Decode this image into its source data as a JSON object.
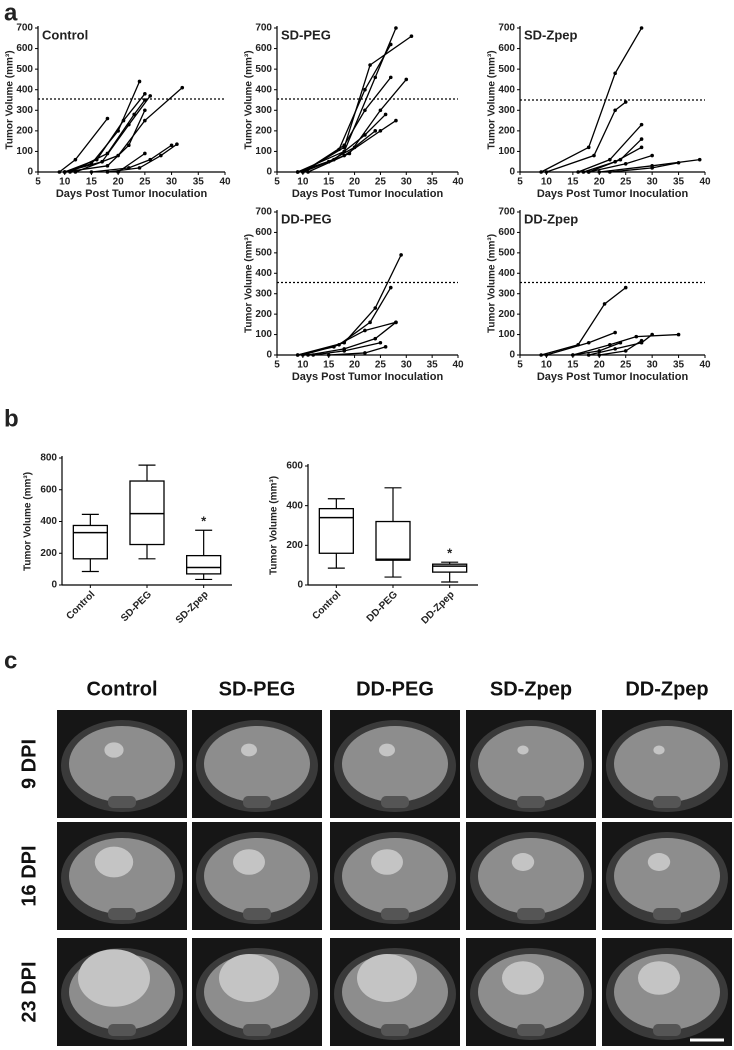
{
  "panel_labels": [
    "a",
    "b",
    "c"
  ],
  "chart_data": [
    {
      "type": "line",
      "title": "Control",
      "xlabel": "Days Post Tumor Inoculation",
      "ylabel": "Tumor Volume (mm³)",
      "xlim": [
        5,
        40
      ],
      "xticks": [
        5,
        10,
        15,
        20,
        25,
        30,
        35,
        40
      ],
      "ylim": [
        0,
        700
      ],
      "yticks": [
        0,
        100,
        200,
        300,
        400,
        500,
        600,
        700
      ],
      "hline": 355,
      "series": [
        {
          "color": "#000000",
          "x": [
            9,
            12,
            18
          ],
          "values": [
            0,
            60,
            260
          ]
        },
        {
          "color": "#000000",
          "x": [
            10,
            15,
            20,
            24
          ],
          "values": [
            0,
            40,
            200,
            440
          ]
        },
        {
          "color": "#000000",
          "x": [
            10,
            16,
            21,
            25
          ],
          "values": [
            0,
            60,
            250,
            380
          ]
        },
        {
          "color": "#000000",
          "x": [
            10,
            17,
            22,
            26
          ],
          "values": [
            0,
            50,
            230,
            370
          ]
        },
        {
          "color": "#000000",
          "x": [
            11,
            18,
            23,
            25
          ],
          "values": [
            0,
            90,
            280,
            350
          ]
        },
        {
          "color": "#000000",
          "x": [
            12,
            20,
            25,
            32
          ],
          "values": [
            0,
            80,
            250,
            410
          ]
        },
        {
          "color": "#000000",
          "x": [
            10,
            18,
            22,
            25
          ],
          "values": [
            0,
            30,
            130,
            300
          ]
        },
        {
          "color": "#000000",
          "x": [
            15,
            22,
            26,
            30
          ],
          "values": [
            0,
            20,
            60,
            130
          ]
        },
        {
          "color": "#000000",
          "x": [
            18,
            24,
            28,
            31
          ],
          "values": [
            0,
            20,
            80,
            135
          ]
        },
        {
          "color": "#000000",
          "x": [
            20,
            25
          ],
          "values": [
            0,
            90
          ]
        }
      ]
    },
    {
      "type": "line",
      "title": "SD-PEG",
      "xlabel": "Days Post Tumor Inoculation",
      "ylabel": "Tumor Volume (mm³)",
      "xlim": [
        5,
        40
      ],
      "xticks": [
        5,
        10,
        15,
        20,
        25,
        30,
        35,
        40
      ],
      "ylim": [
        0,
        700
      ],
      "yticks": [
        0,
        100,
        200,
        300,
        400,
        500,
        600,
        700
      ],
      "hline": 355,
      "series": [
        {
          "color": "#000000",
          "x": [
            9,
            18,
            24,
            28
          ],
          "values": [
            0,
            100,
            460,
            700
          ]
        },
        {
          "color": "#000000",
          "x": [
            10,
            18,
            23,
            31
          ],
          "values": [
            0,
            120,
            520,
            660
          ]
        },
        {
          "color": "#000000",
          "x": [
            10,
            17,
            22,
            27
          ],
          "values": [
            0,
            110,
            400,
            620
          ]
        },
        {
          "color": "#000000",
          "x": [
            11,
            19,
            25,
            30
          ],
          "values": [
            0,
            90,
            300,
            450
          ]
        },
        {
          "color": "#000000",
          "x": [
            10,
            18,
            22,
            27
          ],
          "values": [
            0,
            130,
            300,
            460
          ]
        },
        {
          "color": "#000000",
          "x": [
            10,
            18,
            25,
            28
          ],
          "values": [
            0,
            80,
            200,
            250
          ]
        },
        {
          "color": "#000000",
          "x": [
            9,
            16,
            22,
            26
          ],
          "values": [
            0,
            60,
            180,
            280
          ]
        },
        {
          "color": "#000000",
          "x": [
            9,
            15,
            20,
            24
          ],
          "values": [
            0,
            50,
            120,
            200
          ]
        }
      ]
    },
    {
      "type": "line",
      "title": "SD-Zpep",
      "xlabel": "Days Post Tumor Inoculation",
      "ylabel": "Tumor Volume (mm³)",
      "xlim": [
        5,
        40
      ],
      "xticks": [
        5,
        10,
        15,
        20,
        25,
        30,
        35,
        40
      ],
      "ylim": [
        0,
        700
      ],
      "yticks": [
        0,
        100,
        200,
        300,
        400,
        500,
        600,
        700
      ],
      "hline": 350,
      "series": [
        {
          "color": "#000000",
          "x": [
            9,
            18,
            23,
            28
          ],
          "values": [
            0,
            120,
            480,
            700
          ]
        },
        {
          "color": "#000000",
          "x": [
            10,
            19,
            23,
            25
          ],
          "values": [
            0,
            80,
            300,
            340
          ]
        },
        {
          "color": "#000000",
          "x": [
            16,
            22,
            28
          ],
          "values": [
            0,
            60,
            230
          ]
        },
        {
          "color": "#000000",
          "x": [
            18,
            24,
            28
          ],
          "values": [
            0,
            60,
            160
          ]
        },
        {
          "color": "#000000",
          "x": [
            17,
            23,
            28
          ],
          "values": [
            0,
            50,
            120
          ]
        },
        {
          "color": "#000000",
          "x": [
            18,
            25,
            30
          ],
          "values": [
            0,
            40,
            80
          ]
        },
        {
          "color": "#000000",
          "x": [
            20,
            30,
            39
          ],
          "values": [
            0,
            30,
            60
          ]
        },
        {
          "color": "#000000",
          "x": [
            22,
            30,
            35
          ],
          "values": [
            0,
            20,
            45
          ]
        }
      ]
    },
    {
      "type": "line",
      "title": "DD-PEG",
      "xlabel": "Days Post Tumor Inoculation",
      "ylabel": "Tumor Volume (mm³)",
      "xlim": [
        5,
        40
      ],
      "xticks": [
        5,
        10,
        15,
        20,
        25,
        30,
        35,
        40
      ],
      "ylim": [
        0,
        700
      ],
      "yticks": [
        0,
        100,
        200,
        300,
        400,
        500,
        600,
        700
      ],
      "hline": 355,
      "series": [
        {
          "color": "#000000",
          "x": [
            9,
            18,
            24,
            29
          ],
          "values": [
            0,
            60,
            230,
            490
          ]
        },
        {
          "color": "#000000",
          "x": [
            10,
            17,
            23,
            27
          ],
          "values": [
            0,
            50,
            160,
            330
          ]
        },
        {
          "color": "#000000",
          "x": [
            9,
            16,
            22,
            28
          ],
          "values": [
            0,
            40,
            120,
            160
          ]
        },
        {
          "color": "#000000",
          "x": [
            11,
            18,
            24,
            28
          ],
          "values": [
            0,
            30,
            80,
            160
          ]
        },
        {
          "color": "#000000",
          "x": [
            12,
            18,
            25
          ],
          "values": [
            0,
            20,
            60
          ]
        },
        {
          "color": "#000000",
          "x": [
            15,
            22,
            26
          ],
          "values": [
            0,
            10,
            40
          ]
        }
      ]
    },
    {
      "type": "line",
      "title": "DD-Zpep",
      "xlabel": "Days Post Tumor Inoculation",
      "ylabel": "Tumor Volume (mm³)",
      "xlim": [
        5,
        40
      ],
      "xticks": [
        5,
        10,
        15,
        20,
        25,
        30,
        35,
        40
      ],
      "ylim": [
        0,
        700
      ],
      "yticks": [
        0,
        100,
        200,
        300,
        400,
        500,
        600,
        700
      ],
      "hline": 355,
      "series": [
        {
          "color": "#000000",
          "x": [
            9,
            16,
            21,
            25
          ],
          "values": [
            0,
            50,
            250,
            330
          ]
        },
        {
          "color": "#000000",
          "x": [
            10,
            18,
            23
          ],
          "values": [
            0,
            60,
            110
          ]
        },
        {
          "color": "#000000",
          "x": [
            15,
            22,
            27,
            35
          ],
          "values": [
            0,
            50,
            90,
            100
          ]
        },
        {
          "color": "#000000",
          "x": [
            18,
            23,
            28,
            30
          ],
          "values": [
            0,
            30,
            60,
            100
          ]
        },
        {
          "color": "#000000",
          "x": [
            20,
            25,
            28
          ],
          "values": [
            0,
            20,
            70
          ]
        },
        {
          "color": "#000000",
          "x": [
            15,
            20,
            24
          ],
          "values": [
            0,
            20,
            60
          ]
        }
      ]
    },
    {
      "type": "box",
      "ylabel": "Tumor Volume (mm³)",
      "categories": [
        "Control",
        "SD-PEG",
        "SD-Zpep"
      ],
      "ylim": [
        0,
        800
      ],
      "yticks": [
        0,
        200,
        400,
        600,
        800
      ],
      "boxes": [
        {
          "min": 85,
          "q1": 165,
          "median": 330,
          "q3": 375,
          "max": 445
        },
        {
          "min": 165,
          "q1": 255,
          "median": 450,
          "q3": 655,
          "max": 755
        },
        {
          "min": 35,
          "q1": 70,
          "median": 110,
          "q3": 185,
          "max": 345
        }
      ],
      "significance": [
        null,
        null,
        "*"
      ]
    },
    {
      "type": "box",
      "ylabel": "Tumor Volume (mm³)",
      "categories": [
        "Control",
        "DD-PEG",
        "DD-Zpep"
      ],
      "ylim": [
        0,
        600
      ],
      "yticks": [
        0,
        200,
        400,
        600
      ],
      "boxes": [
        {
          "min": 85,
          "q1": 160,
          "median": 340,
          "q3": 385,
          "max": 435
        },
        {
          "min": 40,
          "q1": 125,
          "median": 130,
          "q3": 320,
          "max": 490
        },
        {
          "min": 15,
          "q1": 65,
          "median": 95,
          "q3": 105,
          "max": 115
        }
      ],
      "significance": [
        null,
        null,
        "*"
      ]
    }
  ],
  "mri": {
    "columns": [
      "Control",
      "SD-PEG",
      "DD-PEG",
      "SD-Zpep",
      "DD-Zpep"
    ],
    "rows": [
      "9 DPI",
      "16 DPI",
      "23 DPI"
    ]
  }
}
